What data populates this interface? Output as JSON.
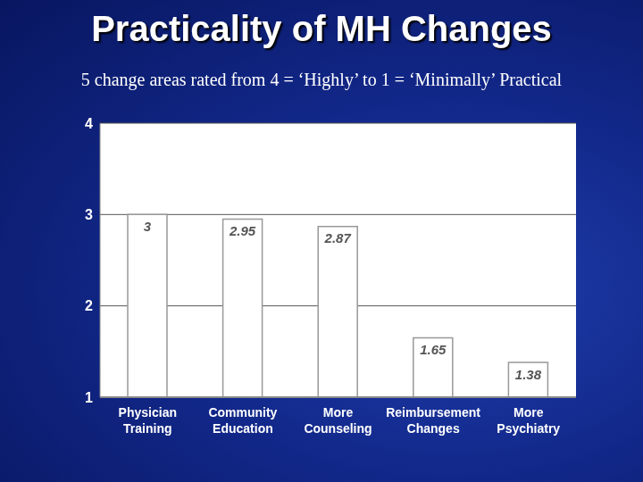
{
  "chart_data": {
    "type": "bar",
    "title": "Practicality of MH Changes",
    "subtitle": "5 change areas rated from 4 = ‘Highly’ to 1 = ‘Minimally’ Practical",
    "categories": [
      "Physician Training",
      "Community Education",
      "More Counseling",
      "Reimbursement Changes",
      "More Psychiatry"
    ],
    "values": [
      3,
      2.95,
      2.87,
      1.65,
      1.38
    ],
    "color": "#ffffff",
    "ylim": [
      1,
      4
    ],
    "yticks": [
      1,
      2,
      3,
      4
    ],
    "grid": true,
    "data_labels": true
  }
}
